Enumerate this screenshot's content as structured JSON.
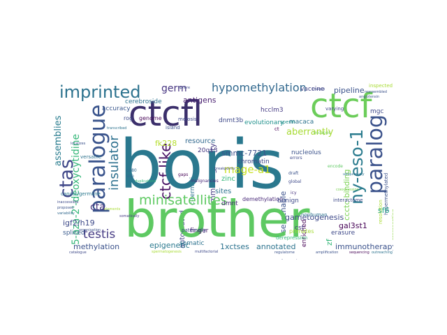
{
  "words": [
    {
      "text": "boris",
      "color": "#2a788e"
    },
    {
      "text": "brother",
      "color": "#5ec962"
    },
    {
      "text": "ctcfl",
      "color": "#3b2f6b"
    },
    {
      "text": "ctcf",
      "color": "#6ccd5a"
    },
    {
      "text": "imprinted",
      "color": "#2c728e"
    },
    {
      "text": "paralogue",
      "color": "#3a548c"
    },
    {
      "text": "paralog",
      "color": "#3b528b"
    },
    {
      "text": "ny-eso-1",
      "color": "#2a7b8e"
    },
    {
      "text": "ctas",
      "color": "#3f4788"
    },
    {
      "text": "minisatellites",
      "color": "#5ec962"
    },
    {
      "text": "hypomethylation",
      "color": "#31688e"
    },
    {
      "text": "germ",
      "color": "#463480"
    },
    {
      "text": "insulator",
      "color": "#2d708e"
    },
    {
      "text": "mage-a1",
      "color": "#c8e020"
    },
    {
      "text": "testis",
      "color": "#443983"
    },
    {
      "text": "cta",
      "color": "#46337e"
    },
    {
      "text": "spermatocytes",
      "color": "#2d708e"
    },
    {
      "text": "5-aza-2'-deoxycytidine",
      "color": "#35b779"
    },
    {
      "text": "assemblies",
      "color": "#287c8e"
    },
    {
      "text": "antigens",
      "color": "#481f70"
    },
    {
      "text": "aberrantly",
      "color": "#a8db34"
    },
    {
      "text": "gametogenesis",
      "color": "#3e4989"
    },
    {
      "text": "methylation",
      "color": "#3b528b"
    },
    {
      "text": "epigenetic",
      "color": "#2a788e"
    },
    {
      "text": "1xctses",
      "color": "#2c728e"
    },
    {
      "text": "annotated",
      "color": "#2c738e"
    },
    {
      "text": "immunotherapy",
      "color": "#3b528b"
    },
    {
      "text": "pipeline",
      "color": "#3b528b"
    },
    {
      "text": "igf2/h19",
      "color": "#3e4a89"
    },
    {
      "text": "gal3st1",
      "color": "#440154"
    },
    {
      "text": "sf6",
      "color": "#20a386"
    },
    {
      "text": "cerebroside",
      "color": "#2c728e"
    },
    {
      "text": "fk228",
      "color": "#b5de2b"
    },
    {
      "text": "resource",
      "color": "#31688e"
    },
    {
      "text": "smmc-7721",
      "color": "#3b528b"
    },
    {
      "text": "chromatin",
      "color": "#3e4989"
    },
    {
      "text": "immunogenicity",
      "color": "#443983"
    },
    {
      "text": "ccctc-binding",
      "color": "#7ad151"
    },
    {
      "text": "ctcf-like",
      "color": "#471063"
    },
    {
      "text": "accuracy",
      "color": "#39568c"
    },
    {
      "text": "hcclm3",
      "color": "#443983"
    },
    {
      "text": "macaca",
      "color": "#2c728e"
    },
    {
      "text": "dnmt3b",
      "color": "#3e4989"
    },
    {
      "text": "vaccine",
      "color": "#414487"
    },
    {
      "text": "mgc",
      "color": "#3e4989"
    },
    {
      "text": "genome",
      "color": "#440154"
    },
    {
      "text": "rog",
      "color": "#3e4a89"
    },
    {
      "text": "20q13",
      "color": "#453781"
    },
    {
      "text": "nucleolus",
      "color": "#3b528b"
    },
    {
      "text": "dmnt",
      "color": "#482878"
    },
    {
      "text": "sites",
      "color": "#2c728e"
    },
    {
      "text": "zinc",
      "color": "#35b779"
    },
    {
      "text": "finger",
      "color": "#48186a"
    },
    {
      "text": "somatic",
      "color": "#2c728e"
    },
    {
      "text": "cst",
      "color": "#443983"
    },
    {
      "text": "demethylation",
      "color": "#482878"
    },
    {
      "text": "primates",
      "color": "#a5db36"
    },
    {
      "text": "erasure",
      "color": "#3e4989"
    },
    {
      "text": "zf",
      "color": "#35b779"
    },
    {
      "text": "searchable",
      "color": "#3b528b"
    },
    {
      "text": "benign",
      "color": "#3e4989"
    },
    {
      "text": "c-termini",
      "color": "#2c728e"
    },
    {
      "text": "cancer/germline",
      "color": "#2a788e"
    },
    {
      "text": "automated",
      "color": "#414487"
    },
    {
      "text": "enriched",
      "color": "#440154"
    },
    {
      "text": "paternally",
      "color": "#3e4989"
    },
    {
      "text": "meiosis",
      "color": "#3e4989"
    },
    {
      "text": "evolutionary",
      "color": "#21918c"
    },
    {
      "text": "ct",
      "color": "#440154"
    },
    {
      "text": "island",
      "color": "#3b528b"
    },
    {
      "text": "varying",
      "color": "#414487"
    },
    {
      "text": "inspected",
      "color": "#a8db34"
    },
    {
      "text": "versatile",
      "color": "#2c728e"
    },
    {
      "text": "derepression",
      "color": "#35b779"
    },
    {
      "text": "interactome",
      "color": "#3e4989"
    },
    {
      "text": "nonhuman",
      "color": "#2c728e"
    },
    {
      "text": "spliced",
      "color": "#38598c"
    },
    {
      "text": "icy",
      "color": "#46337e"
    },
    {
      "text": "escapes",
      "color": "#7ad151"
    },
    {
      "text": "representing",
      "color": "#8fd744"
    },
    {
      "text": "hypermethylated",
      "color": "#3b528b"
    },
    {
      "text": "resolution",
      "color": "#a8db34"
    },
    {
      "text": "sperm",
      "color": "#21918c"
    },
    {
      "text": "errors",
      "color": "#3e4989"
    },
    {
      "text": "malignancies",
      "color": "#482878"
    },
    {
      "text": "draft",
      "color": "#3b528b"
    },
    {
      "text": "global",
      "color": "#3e4989"
    },
    {
      "text": "cd80",
      "color": "#31688e"
    },
    {
      "text": "snp",
      "color": "#31688e"
    },
    {
      "text": "gaps",
      "color": "#440154"
    },
    {
      "text": "encode",
      "color": "#5ec962"
    },
    {
      "text": "fragments",
      "color": "#3e4989"
    },
    {
      "text": "regulatome",
      "color": "#3b528b"
    },
    {
      "text": "amplification",
      "color": "#3b528b"
    },
    {
      "text": "sequencing",
      "color": "#440154"
    },
    {
      "text": "spermatogenesis",
      "color": "#a8db34"
    },
    {
      "text": "coexpression",
      "color": "#7ad151"
    },
    {
      "text": "angiotensin",
      "color": "#3b528b"
    },
    {
      "text": "sphere",
      "color": "#3e4989"
    },
    {
      "text": "images",
      "color": "#3e4989"
    },
    {
      "text": "multifactorial",
      "color": "#3e4989"
    },
    {
      "text": "outreaching",
      "color": "#2c728e"
    },
    {
      "text": "reassembled",
      "color": "#3b528b"
    },
    {
      "text": "organisation",
      "color": "#3b528b"
    },
    {
      "text": "transcribed",
      "color": "#2c728e"
    },
    {
      "text": "proposed",
      "color": "#3b528b"
    },
    {
      "text": "variability",
      "color": "#31688e"
    },
    {
      "text": "elements",
      "color": "#a8db34"
    },
    {
      "text": "somatically",
      "color": "#443983"
    },
    {
      "text": "inaccessible",
      "color": "#3e4989"
    },
    {
      "text": "localizes",
      "color": "#3b528b"
    },
    {
      "text": "duplications",
      "color": "#35b779"
    },
    {
      "text": "breakpoints",
      "color": "#3e4989"
    },
    {
      "text": "catalogue",
      "color": "#3e4989"
    },
    {
      "text": "ubiquitously",
      "color": "#2c728e"
    }
  ]
}
